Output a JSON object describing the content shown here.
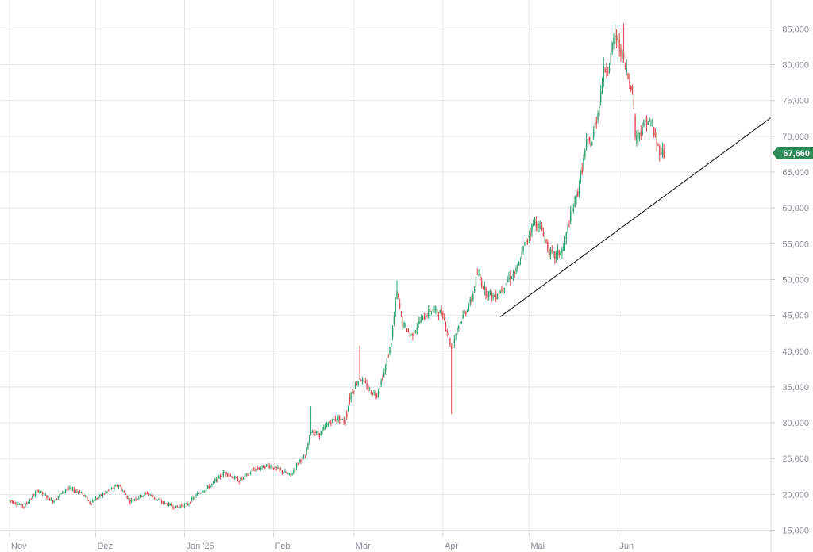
{
  "chart_data": {
    "type": "candlestick",
    "y_axis": {
      "range": [
        13500,
        87000
      ],
      "ticks": [
        15000,
        20000,
        25000,
        30000,
        35000,
        40000,
        45000,
        50000,
        55000,
        60000,
        65000,
        70000,
        75000,
        80000,
        85000
      ],
      "tick_labels": [
        "15,000",
        "20,000",
        "25,000",
        "30,000",
        "35,000",
        "40,000",
        "45,000",
        "50,000",
        "55,000",
        "60,000",
        "65,000",
        "70,000",
        "75,000",
        "80,000",
        "85,000"
      ],
      "position": "right"
    },
    "x_axis": {
      "range_days": [
        -2,
        235
      ],
      "months": [
        {
          "label": "Nov",
          "day": 0
        },
        {
          "label": "Dez",
          "day": 30
        },
        {
          "label": "Jan '25",
          "day": 61
        },
        {
          "label": "Feb",
          "day": 92
        },
        {
          "label": "Mär",
          "day": 120
        },
        {
          "label": "Apr",
          "day": 151
        },
        {
          "label": "Mai",
          "day": 181
        },
        {
          "label": "Jun",
          "day": 212
        }
      ]
    },
    "grid": true,
    "last_price": "67,660",
    "last_price_value": 67660,
    "colors": {
      "up": "#2e9e6b",
      "down": "#d84a4f",
      "trendline": "#1b1b1b",
      "grid": "#e6e6e6",
      "price_tag": "#2e8b57"
    },
    "trendline": {
      "start": {
        "day": 171,
        "value": 44800
      },
      "end": {
        "day": 266,
        "value": 72800
      }
    },
    "keypoints": [
      [
        0,
        19200
      ],
      [
        5,
        18300
      ],
      [
        10,
        20600
      ],
      [
        15,
        19000
      ],
      [
        20,
        20800
      ],
      [
        25,
        20300
      ],
      [
        28,
        18800
      ],
      [
        34,
        20400
      ],
      [
        38,
        21300
      ],
      [
        42,
        19100
      ],
      [
        48,
        20200
      ],
      [
        53,
        18900
      ],
      [
        58,
        18200
      ],
      [
        62,
        18600
      ],
      [
        66,
        20200
      ],
      [
        70,
        21200
      ],
      [
        75,
        23100
      ],
      [
        80,
        21900
      ],
      [
        85,
        23400
      ],
      [
        90,
        24100
      ],
      [
        94,
        23400
      ],
      [
        98,
        22600
      ],
      [
        101,
        24800
      ],
      [
        103,
        25100
      ],
      [
        105,
        28900
      ],
      [
        108,
        28400
      ],
      [
        112,
        30300
      ],
      [
        115,
        30600
      ],
      [
        117,
        30100
      ],
      [
        119,
        34100
      ],
      [
        122,
        36300
      ],
      [
        126,
        34300
      ],
      [
        128,
        34000
      ],
      [
        131,
        37600
      ],
      [
        133,
        41300
      ],
      [
        135,
        48200
      ],
      [
        137,
        43800
      ],
      [
        140,
        42200
      ],
      [
        143,
        44200
      ],
      [
        147,
        45800
      ],
      [
        151,
        45200
      ],
      [
        153,
        42100
      ],
      [
        154,
        40300
      ],
      [
        156,
        43300
      ],
      [
        158,
        44900
      ],
      [
        161,
        47100
      ],
      [
        163,
        50800
      ],
      [
        166,
        48300
      ],
      [
        169,
        47600
      ],
      [
        171,
        48400
      ],
      [
        174,
        50200
      ],
      [
        177,
        51300
      ],
      [
        179,
        54300
      ],
      [
        181,
        56400
      ],
      [
        183,
        58200
      ],
      [
        186,
        56600
      ],
      [
        188,
        53800
      ],
      [
        190,
        53200
      ],
      [
        193,
        54200
      ],
      [
        195,
        58100
      ],
      [
        198,
        62300
      ],
      [
        201,
        68900
      ],
      [
        203,
        69200
      ],
      [
        205,
        73500
      ],
      [
        207,
        79000
      ],
      [
        209,
        80200
      ],
      [
        211,
        84000
      ],
      [
        213,
        82100
      ],
      [
        214,
        80300
      ],
      [
        215,
        79000
      ],
      [
        216,
        77400
      ],
      [
        217,
        77300
      ],
      [
        218,
        70200
      ],
      [
        220,
        70800
      ],
      [
        222,
        72400
      ],
      [
        224,
        71200
      ],
      [
        226,
        68400
      ],
      [
        228,
        67660
      ]
    ],
    "gaps": [
      118,
      219
    ]
  }
}
